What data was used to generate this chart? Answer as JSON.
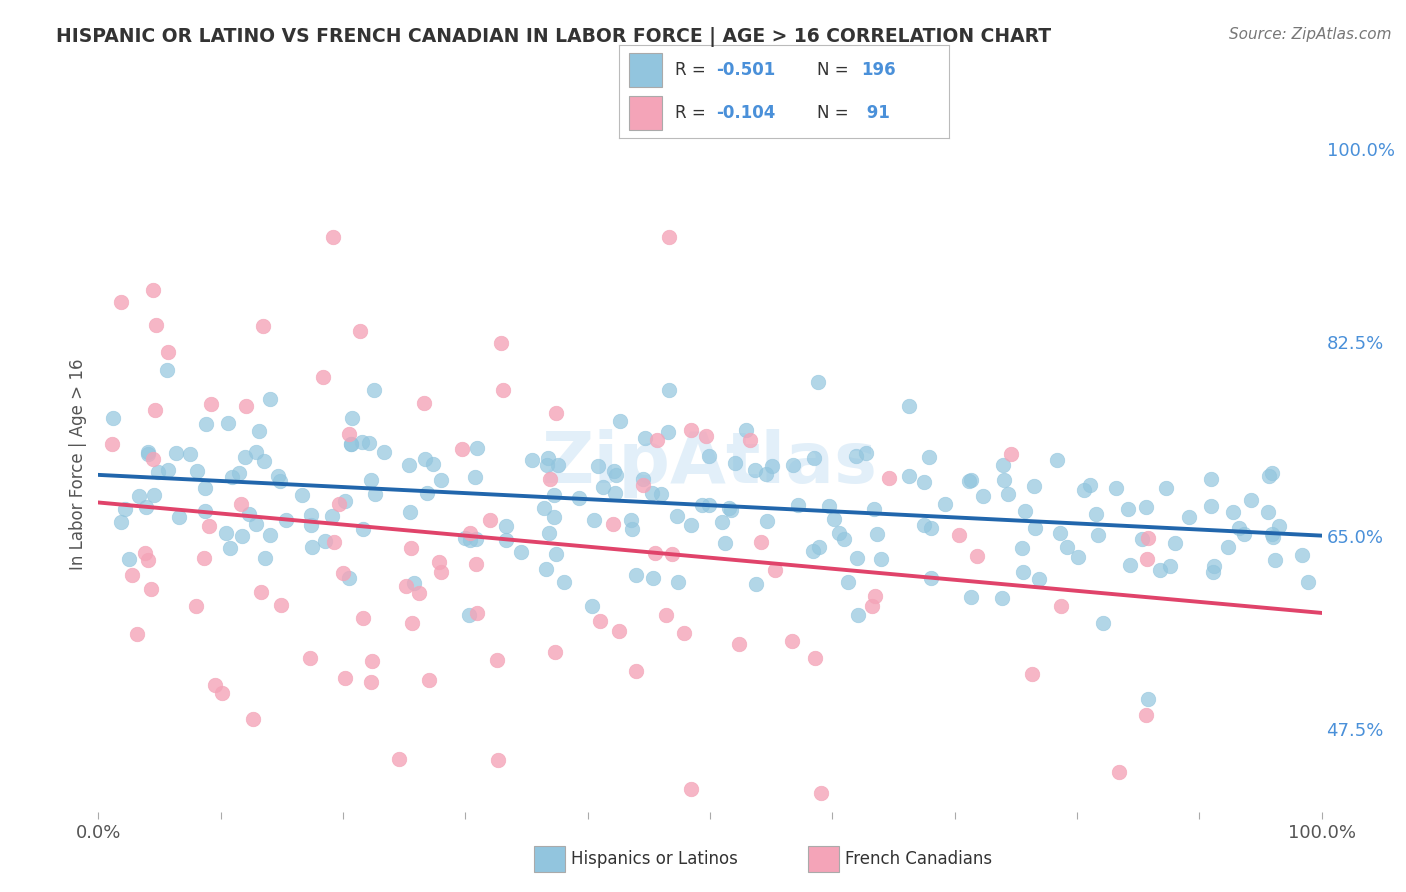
{
  "title": "HISPANIC OR LATINO VS FRENCH CANADIAN IN LABOR FORCE | AGE > 16 CORRELATION CHART",
  "source": "Source: ZipAtlas.com",
  "ylabel": "In Labor Force | Age > 16",
  "xlim": [
    0,
    100
  ],
  "ylim": [
    40,
    103
  ],
  "yticks": [
    47.5,
    65.0,
    82.5,
    100.0
  ],
  "xtick_labels": [
    "0.0%",
    "100.0%"
  ],
  "ytick_labels": [
    "47.5%",
    "65.0%",
    "82.5%",
    "100.0%"
  ],
  "blue_color": "#92c5de",
  "blue_line_color": "#2166ac",
  "pink_color": "#f4a4b8",
  "pink_line_color": "#e0436a",
  "blue_N": 196,
  "blue_intercept": 70.5,
  "blue_slope": -0.055,
  "blue_noise_std": 4.5,
  "pink_N": 91,
  "pink_intercept": 68.0,
  "pink_slope": -0.1,
  "pink_noise_std": 9.5,
  "watermark": "ZipAtlas",
  "background_color": "#ffffff",
  "grid_color": "#cccccc",
  "title_color": "#333333",
  "axis_color": "#555555",
  "legend_blue_R": "-0.501",
  "legend_blue_N": "196",
  "legend_pink_R": "-0.104",
  "legend_pink_N": " 91",
  "stat_color": "#4a90d9",
  "label_color": "#333333"
}
